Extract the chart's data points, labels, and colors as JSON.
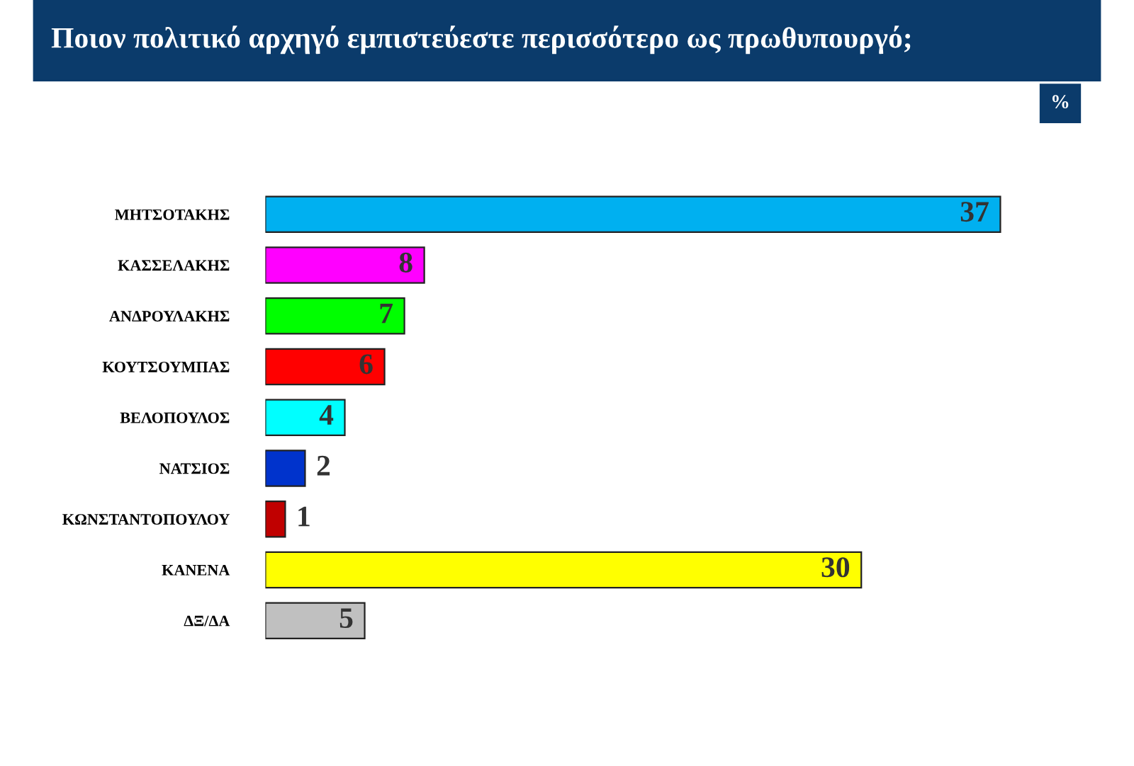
{
  "chart_data": {
    "type": "bar",
    "orientation": "horizontal",
    "title": "Ποιον πολιτικό αρχηγό εμπιστεύεστε περισσότερο ως πρωθυπουργό;",
    "categories": [
      "ΜΗΤΣΟΤΑΚΗΣ",
      "ΚΑΣΣΕΛΑΚΗΣ",
      "ΑΝΔΡΟΥΛΑΚΗΣ",
      "ΚΟΥΤΣΟΥΜΠΑΣ",
      "ΒΕΛΟΠΟΥΛΟΣ",
      "ΝΑΤΣΙΟΣ",
      "ΚΩΝΣΤΑΝΤΟΠΟΥΛΟΥ",
      "ΚΑΝΕΝΑ",
      "ΔΞ/ΔΑ"
    ],
    "values": [
      37,
      8,
      7,
      6,
      4,
      2,
      1,
      30,
      5
    ],
    "colors": [
      "#00b0f0",
      "#ff00ff",
      "#00ff00",
      "#ff0000",
      "#00ffff",
      "#0033cc",
      "#c00000",
      "#ffff00",
      "#c0c0c0"
    ],
    "data_labels": true,
    "annotations": [
      "%"
    ]
  }
}
